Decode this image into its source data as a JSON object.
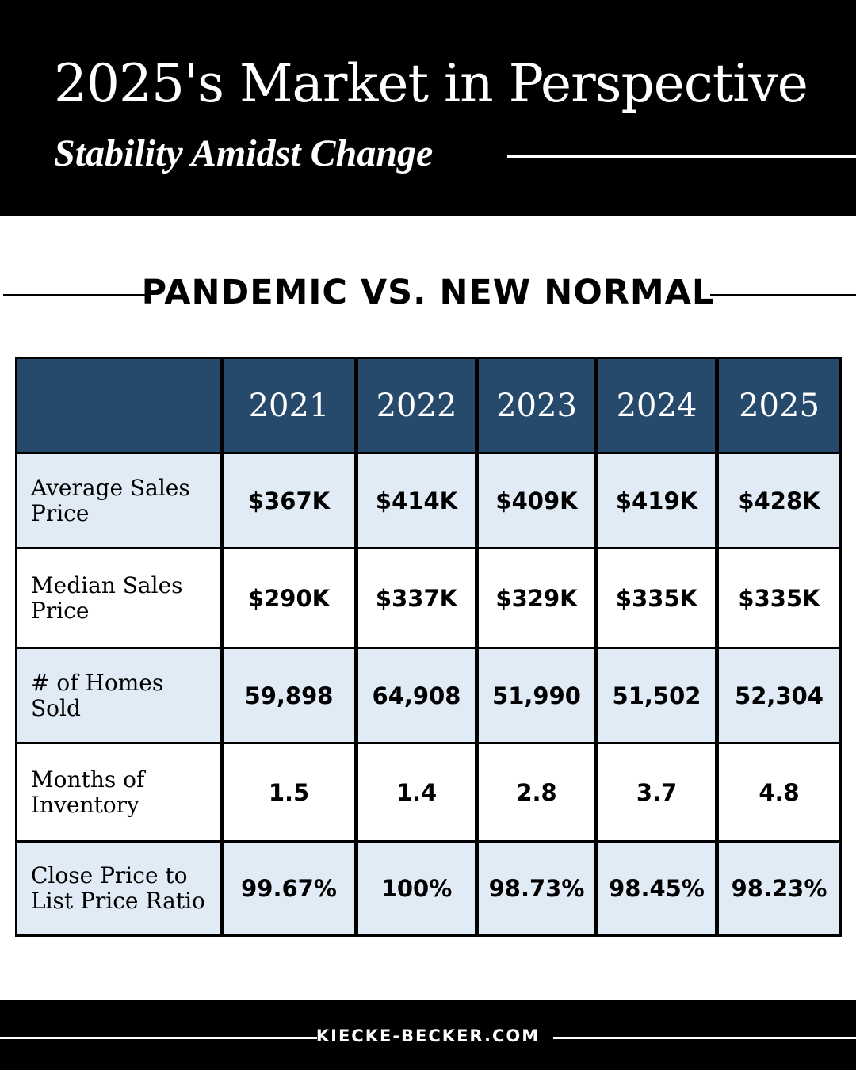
{
  "header": {
    "title": "2025's Market in Perspective",
    "subtitle": "Stability Amidst Change"
  },
  "section": {
    "title": "PANDEMIC VS. NEW NORMAL"
  },
  "chart_data": {
    "type": "table",
    "columns": [
      "2021",
      "2022",
      "2023",
      "2024",
      "2025"
    ],
    "rows": [
      {
        "label": "Average Sales Price",
        "values": [
          "$367K",
          "$414K",
          "$409K",
          "$419K",
          "$428K"
        ]
      },
      {
        "label": "Median Sales Price",
        "values": [
          "$290K",
          "$337K",
          "$329K",
          "$335K",
          "$335K"
        ]
      },
      {
        "label": "# of Homes Sold",
        "values": [
          "59,898",
          "64,908",
          "51,990",
          "51,502",
          "52,304"
        ]
      },
      {
        "label": "Months of Inventory",
        "values": [
          "1.5",
          "1.4",
          "2.8",
          "3.7",
          "4.8"
        ]
      },
      {
        "label": "Close Price to List Price Ratio",
        "values": [
          "99.67%",
          "100%",
          "98.73%",
          "98.45%",
          "98.23%"
        ]
      }
    ]
  },
  "footer": {
    "website": "KIECKE-BECKER.COM"
  },
  "colors": {
    "header_bg": "#000000",
    "table_head": "#264a6b",
    "row_shade": "#e1ebf5",
    "text_light": "#ffffff",
    "text_dark": "#000000"
  }
}
